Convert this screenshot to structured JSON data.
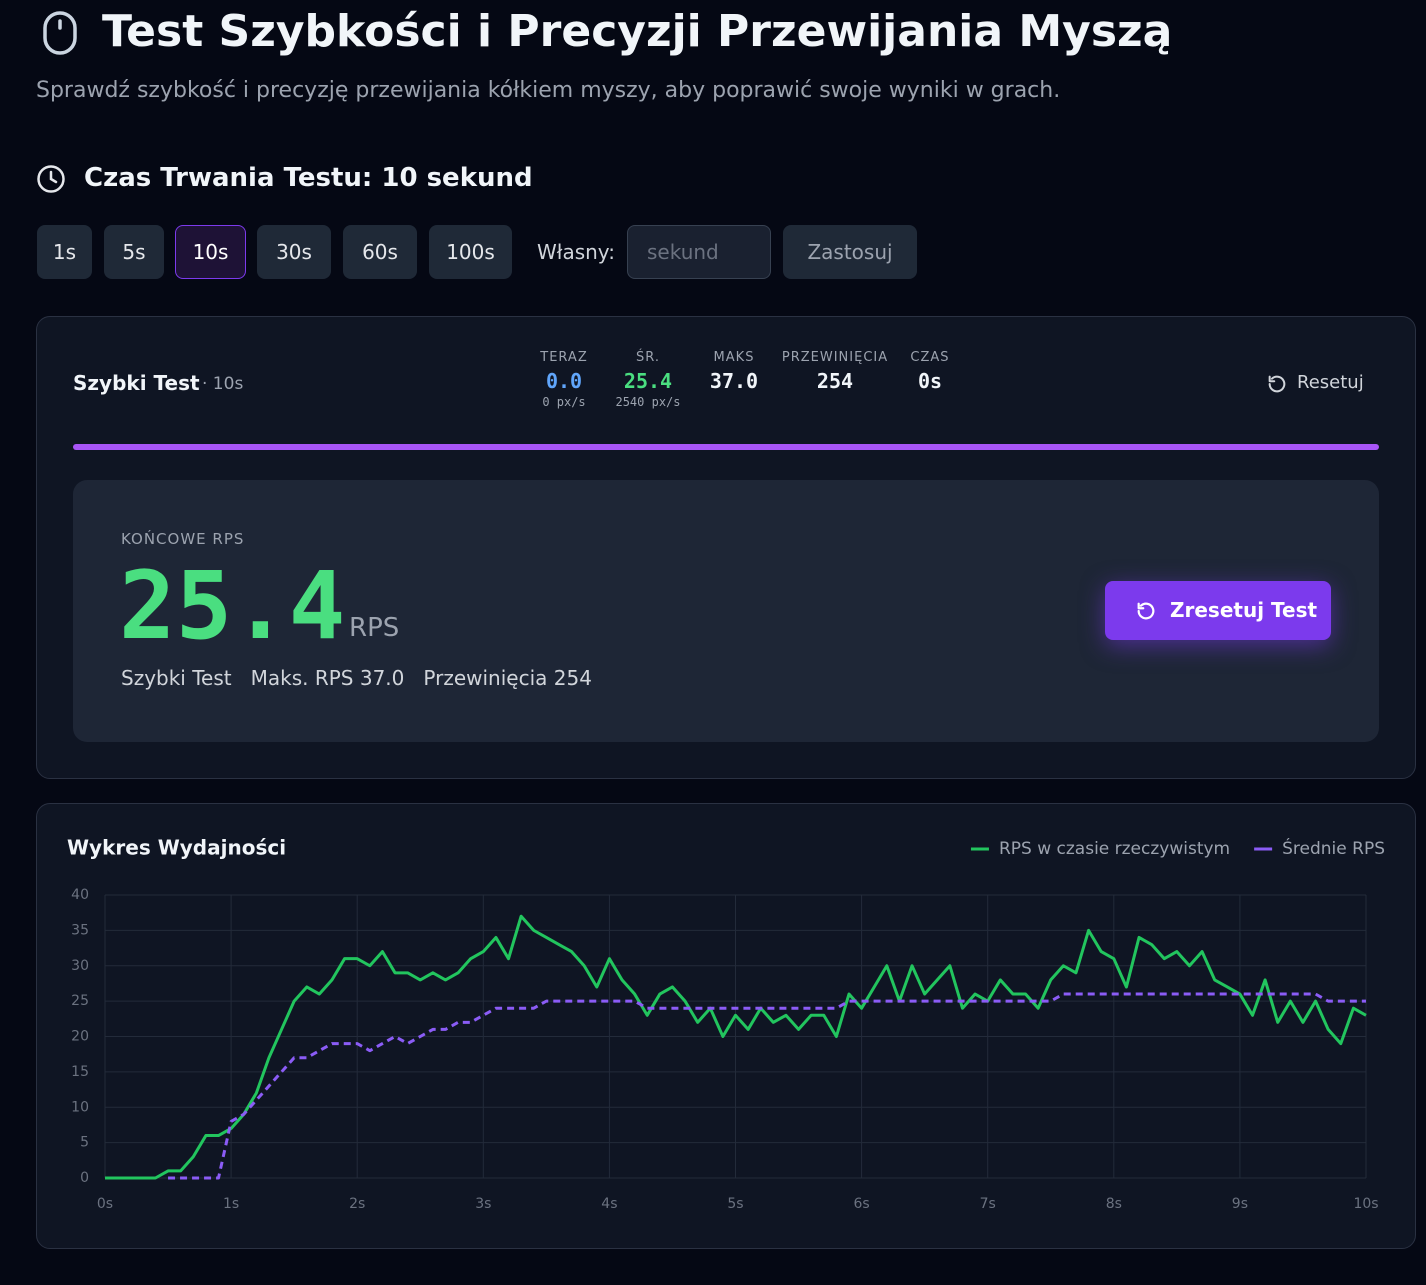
{
  "header": {
    "title": "Test Szybkości i Precyzji Przewijania Myszą",
    "subtitle": "Sprawdź szybkość i precyzję przewijania kółkiem myszy, aby poprawić swoje wyniki w grach."
  },
  "duration": {
    "heading": "Czas Trwania Testu: 10 sekund",
    "options": [
      "1s",
      "5s",
      "10s",
      "30s",
      "60s",
      "100s"
    ],
    "selected": 2,
    "custom_label": "Własny:",
    "custom_placeholder": "sekund",
    "apply": "Zastosuj"
  },
  "panel": {
    "name": "Szybki Test",
    "duration": "· 10s",
    "reset": "Resetuj",
    "stats": [
      {
        "label": "TERAZ",
        "value": "0.0",
        "sub": "0 px/s",
        "color": "#60a5fa"
      },
      {
        "label": "ŚR.",
        "value": "25.4",
        "sub": "2540 px/s",
        "color": "#4ade80"
      },
      {
        "label": "MAKS",
        "value": "37.0",
        "color": "#f1f5f9"
      },
      {
        "label": "PRZEWINIĘCIA",
        "value": "254",
        "color": "#f1f5f9"
      },
      {
        "label": "CZAS",
        "value": "0s",
        "color": "#f1f5f9"
      }
    ]
  },
  "result": {
    "label": "KOŃCOWE RPS",
    "value": "25.4",
    "unit": "RPS",
    "details": [
      "Szybki Test",
      "Maks. RPS 37.0",
      "Przewinięcia 254"
    ],
    "button": "Zresetuj Test"
  },
  "chart_data": {
    "type": "line",
    "title": "Wykres Wydajności",
    "legend": "top-right",
    "grid": true,
    "x": [
      0,
      0.1,
      0.2,
      0.3,
      0.4,
      0.5,
      0.6,
      0.7,
      0.8,
      0.9,
      1,
      1.1,
      1.2,
      1.3,
      1.4,
      1.5,
      1.6,
      1.7,
      1.8,
      1.9,
      2,
      2.1,
      2.2,
      2.3,
      2.4,
      2.5,
      2.6,
      2.7,
      2.8,
      2.9,
      3,
      3.1,
      3.2,
      3.3,
      3.4,
      3.5,
      3.6,
      3.7,
      3.8,
      3.9,
      4,
      4.1,
      4.2,
      4.3,
      4.4,
      4.5,
      4.6,
      4.7,
      4.8,
      4.9,
      5,
      5.1,
      5.2,
      5.3,
      5.4,
      5.5,
      5.6,
      5.7,
      5.8,
      5.9,
      6,
      6.1,
      6.2,
      6.3,
      6.4,
      6.5,
      6.6,
      6.7,
      6.8,
      6.9,
      7,
      7.1,
      7.2,
      7.3,
      7.4,
      7.5,
      7.6,
      7.7,
      7.8,
      7.9,
      8,
      8.1,
      8.2,
      8.3,
      8.4,
      8.5,
      8.6,
      8.7,
      8.8,
      8.9,
      9,
      9.1,
      9.2,
      9.3,
      9.4,
      9.5,
      9.6,
      9.7,
      9.8,
      9.9,
      10
    ],
    "series": [
      {
        "name": "RPS w czasie rzeczywistym",
        "color": "#22c55e",
        "dashed": false,
        "values": [
          0,
          0,
          0,
          0,
          0,
          1,
          1,
          3,
          6,
          6,
          7,
          9,
          12,
          17,
          21,
          25,
          27,
          26,
          28,
          31,
          31,
          30,
          32,
          29,
          29,
          28,
          29,
          28,
          29,
          31,
          32,
          34,
          31,
          37,
          35,
          34,
          33,
          32,
          30,
          27,
          31,
          28,
          26,
          23,
          26,
          27,
          25,
          22,
          24,
          20,
          23,
          21,
          24,
          22,
          23,
          21,
          23,
          23,
          20,
          26,
          24,
          27,
          30,
          25,
          30,
          26,
          28,
          30,
          24,
          26,
          25,
          28,
          26,
          26,
          24,
          28,
          30,
          29,
          35,
          32,
          31,
          27,
          34,
          33,
          31,
          32,
          30,
          32,
          28,
          27,
          26,
          23,
          28,
          22,
          25,
          22,
          25,
          21,
          19,
          24,
          23
        ]
      },
      {
        "name": "Średnie RPS",
        "color": "#8b5cf6",
        "dashed": true,
        "values": [
          null,
          null,
          null,
          null,
          null,
          0,
          0,
          0,
          0,
          0,
          8,
          9,
          11,
          13,
          15,
          17,
          17,
          18,
          19,
          19,
          19,
          18,
          19,
          20,
          19,
          20,
          21,
          21,
          22,
          22,
          23,
          24,
          24,
          24,
          24,
          25,
          25,
          25,
          25,
          25,
          25,
          25,
          25,
          24,
          24,
          24,
          24,
          24,
          24,
          24,
          24,
          24,
          24,
          24,
          24,
          24,
          24,
          24,
          24,
          25,
          25,
          25,
          25,
          25,
          25,
          25,
          25,
          25,
          25,
          25,
          25,
          25,
          25,
          25,
          25,
          25,
          26,
          26,
          26,
          26,
          26,
          26,
          26,
          26,
          26,
          26,
          26,
          26,
          26,
          26,
          26,
          26,
          26,
          26,
          26,
          26,
          26,
          25,
          25,
          25,
          25
        ]
      }
    ],
    "xlim": [
      0,
      10
    ],
    "ylim": [
      0,
      40
    ],
    "yticks": [
      0,
      5,
      10,
      15,
      20,
      25,
      30,
      35,
      40
    ],
    "xticks": [
      {
        "value": 0,
        "label": "0s"
      },
      {
        "value": 1,
        "label": "1s"
      },
      {
        "value": 2,
        "label": "2s"
      },
      {
        "value": 3,
        "label": "3s"
      },
      {
        "value": 4,
        "label": "4s"
      },
      {
        "value": 5,
        "label": "5s"
      },
      {
        "value": 6,
        "label": "6s"
      },
      {
        "value": 7,
        "label": "7s"
      },
      {
        "value": 8,
        "label": "8s"
      },
      {
        "value": 9,
        "label": "9s"
      },
      {
        "value": 10,
        "label": "10s"
      }
    ]
  }
}
